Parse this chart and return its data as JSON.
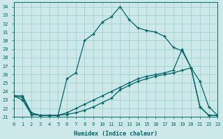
{
  "xlabel": "Humidex (Indice chaleur)",
  "bg_color": "#cce8e8",
  "line_color": "#006666",
  "grid_color": "#99cccc",
  "tick_color": "#006666",
  "xlim": [
    0,
    23
  ],
  "ylim": [
    21,
    34.5
  ],
  "yticks": [
    21,
    22,
    23,
    24,
    25,
    26,
    27,
    28,
    29,
    30,
    31,
    32,
    33,
    34
  ],
  "xticks": [
    0,
    1,
    2,
    3,
    4,
    5,
    6,
    7,
    8,
    9,
    10,
    11,
    12,
    13,
    14,
    15,
    16,
    17,
    18,
    19,
    20,
    21,
    22,
    23
  ],
  "curve1_x": [
    0,
    1,
    2,
    3,
    4,
    5,
    6,
    7,
    8,
    9,
    10,
    11,
    12,
    13,
    14,
    15,
    16,
    17,
    18,
    19,
    20,
    21,
    22,
    23
  ],
  "curve1_y": [
    23.5,
    23.5,
    21.5,
    21.2,
    21.2,
    21.2,
    25.5,
    26.2,
    30.0,
    30.8,
    32.2,
    32.8,
    34.0,
    32.5,
    31.5,
    31.2,
    31.0,
    30.5,
    29.2,
    28.8,
    26.8,
    25.2,
    22.2,
    21.2
  ],
  "curve2_x": [
    0,
    1,
    2,
    3,
    4,
    5,
    6,
    7,
    8,
    9,
    10,
    11,
    12,
    13,
    14,
    15,
    16,
    17,
    18,
    19,
    20,
    21,
    22,
    23
  ],
  "curve2_y": [
    23.5,
    23.0,
    21.3,
    21.2,
    21.2,
    21.2,
    21.3,
    21.5,
    21.8,
    22.2,
    22.7,
    23.2,
    24.2,
    24.7,
    25.2,
    25.5,
    25.8,
    26.0,
    26.2,
    26.5,
    26.8,
    22.2,
    21.2,
    21.2
  ],
  "curve3_x": [
    0,
    1,
    2,
    3,
    4,
    5,
    6,
    7,
    8,
    9,
    10,
    11,
    12,
    13,
    14,
    15,
    16,
    17,
    18,
    19,
    20,
    21,
    22,
    23
  ],
  "curve3_y": [
    23.5,
    23.3,
    21.3,
    21.2,
    21.2,
    21.2,
    21.5,
    22.0,
    22.5,
    23.0,
    23.5,
    24.0,
    24.5,
    25.0,
    25.5,
    25.8,
    26.0,
    26.2,
    26.5,
    29.0,
    26.8,
    22.2,
    21.2,
    21.2
  ]
}
